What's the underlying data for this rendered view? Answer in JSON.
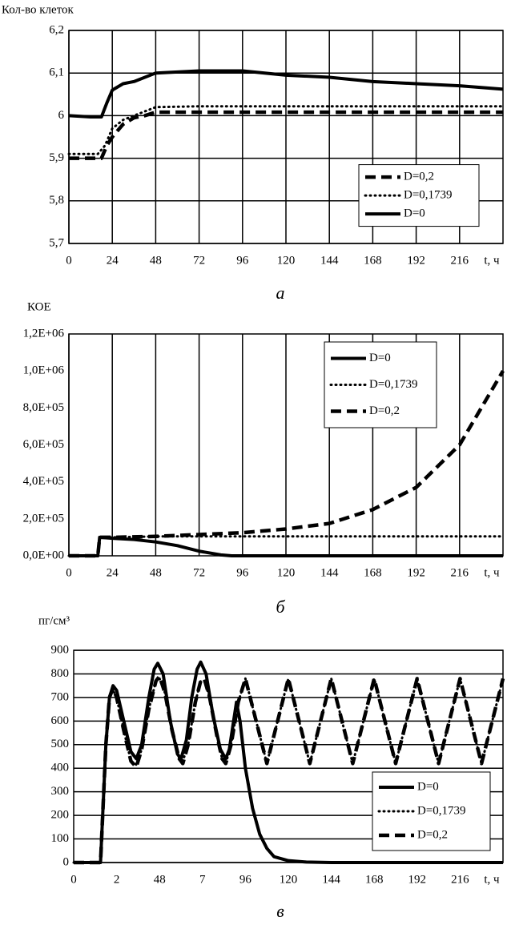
{
  "chart_data": [
    {
      "type": "line",
      "y_label": "Кол-во клеток",
      "caption": "а",
      "x_label": "t, ч",
      "xlim": [
        0,
        240
      ],
      "xticks": [
        0,
        24,
        48,
        72,
        96,
        120,
        144,
        168,
        192,
        216
      ],
      "ylim": [
        5.7,
        6.2
      ],
      "yticks": [
        {
          "value": 5.7,
          "label": "5,7"
        },
        {
          "value": 5.8,
          "label": "5,8"
        },
        {
          "value": 5.9,
          "label": "5,9"
        },
        6,
        {
          "value": 6.1,
          "label": "6,1"
        },
        {
          "value": 6.2,
          "label": "6,2"
        }
      ],
      "grid": "both",
      "legend": "right",
      "series": [
        {
          "name": "D=0,2",
          "color": "#000000",
          "dash": "dashed",
          "x": [
            0,
            18,
            21,
            24,
            30,
            36,
            42,
            48,
            240
          ],
          "values": [
            5.9,
            5.9,
            5.93,
            5.95,
            5.98,
            5.995,
            6.0,
            6.008,
            6.008
          ]
        },
        {
          "name": "D=0,1739",
          "color": "#000000",
          "dash": "dotted",
          "x": [
            0,
            16,
            20,
            24,
            30,
            36,
            48,
            72,
            120,
            240
          ],
          "values": [
            5.91,
            5.91,
            5.93,
            5.97,
            5.99,
            6.0,
            6.02,
            6.022,
            6.022,
            6.022
          ]
        },
        {
          "name": "D=0",
          "color": "#000000",
          "dash": "solid",
          "x": [
            0,
            12,
            18,
            21,
            24,
            30,
            36,
            48,
            72,
            96,
            120,
            144,
            168,
            192,
            216,
            240
          ],
          "values": [
            6.0,
            5.997,
            5.997,
            6.03,
            6.06,
            6.075,
            6.08,
            6.1,
            6.105,
            6.105,
            6.095,
            6.09,
            6.08,
            6.075,
            6.07,
            6.062
          ]
        }
      ]
    },
    {
      "type": "line",
      "y_label": "КОЕ",
      "caption": "б",
      "x_label": "t, ч",
      "xlim": [
        0,
        240
      ],
      "xticks": [
        0,
        24,
        48,
        72,
        96,
        120,
        144,
        168,
        192,
        216
      ],
      "ylim": [
        0,
        1200000
      ],
      "yticks": [
        {
          "value": 0,
          "label": "0,0E+00"
        },
        {
          "value": 200000,
          "label": "2,0E+05"
        },
        {
          "value": 400000,
          "label": "4,0E+05"
        },
        {
          "value": 600000,
          "label": "6,0E+05"
        },
        {
          "value": 800000,
          "label": "8,0E+05"
        },
        {
          "value": 1000000,
          "label": "1,0E+06"
        },
        {
          "value": 1200000,
          "label": "1,2E+06"
        }
      ],
      "grid": "x",
      "legend": "upper right",
      "series": [
        {
          "name": "D=0",
          "color": "#000000",
          "dash": "solid",
          "x": [
            0,
            16,
            17,
            24,
            36,
            48,
            60,
            72,
            84,
            90,
            240
          ],
          "values": [
            0,
            0,
            100000,
            95000,
            88000,
            75000,
            55000,
            25000,
            5000,
            0,
            0
          ]
        },
        {
          "name": "D=0,1739",
          "color": "#000000",
          "dash": "dotted",
          "x": [
            0,
            16,
            17,
            24,
            48,
            72,
            240
          ],
          "values": [
            0,
            0,
            100000,
            100000,
            105000,
            105000,
            105000
          ]
        },
        {
          "name": "D=0,2",
          "color": "#000000",
          "dash": "dashed",
          "x": [
            0,
            16,
            17,
            24,
            48,
            72,
            96,
            120,
            144,
            168,
            192,
            216,
            240
          ],
          "values": [
            0,
            0,
            100000,
            100000,
            105000,
            115000,
            125000,
            145000,
            175000,
            250000,
            370000,
            600000,
            1000000
          ]
        }
      ]
    },
    {
      "type": "line",
      "y_label": "пг/см³",
      "caption": "в",
      "x_label": "t, ч",
      "xlim": [
        0,
        240
      ],
      "xticks": [
        0,
        {
          "value": 24,
          "label": "2"
        },
        48,
        {
          "value": 72,
          "label": "7"
        },
        96,
        120,
        144,
        168,
        192,
        216
      ],
      "ylim": [
        0,
        900
      ],
      "yticks": [
        0,
        100,
        200,
        300,
        400,
        500,
        600,
        700,
        800,
        900
      ],
      "grid": "y",
      "legend": "lower right",
      "series": [
        {
          "name": "D=0",
          "color": "#000000",
          "dash": "solid",
          "x": [
            0,
            15,
            18,
            20,
            22,
            24,
            28,
            32,
            35,
            38,
            42,
            45,
            47,
            50,
            54,
            58,
            60,
            63,
            66,
            69,
            71,
            74,
            78,
            82,
            85,
            87,
            89,
            91,
            93,
            96,
            100,
            104,
            108,
            112,
            120,
            130,
            144,
            168,
            192,
            216,
            240
          ],
          "values": [
            0,
            0,
            500,
            700,
            750,
            730,
            600,
            470,
            440,
            500,
            700,
            820,
            845,
            800,
            600,
            460,
            440,
            520,
            700,
            820,
            850,
            800,
            620,
            480,
            440,
            480,
            580,
            680,
            600,
            400,
            230,
            120,
            60,
            25,
            8,
            2,
            0,
            0,
            0,
            0,
            0
          ]
        },
        {
          "name": "D=0,1739",
          "color": "#000000",
          "dash": "dotted",
          "x": [
            0,
            15,
            18,
            20,
            22,
            24,
            28,
            32,
            35,
            38,
            42,
            46,
            48,
            51,
            55,
            59,
            61,
            64,
            68,
            71,
            73,
            76,
            80,
            83,
            85,
            88,
            92,
            96,
            102,
            108,
            114,
            120,
            126,
            132,
            138,
            144,
            150,
            156,
            162,
            168,
            174,
            180,
            186,
            192,
            198,
            204,
            210,
            216,
            222,
            228,
            234,
            240
          ],
          "values": [
            0,
            0,
            500,
            700,
            730,
            700,
            560,
            430,
            415,
            480,
            650,
            770,
            780,
            720,
            560,
            440,
            430,
            500,
            680,
            770,
            770,
            700,
            540,
            440,
            420,
            500,
            680,
            780,
            600,
            420,
            600,
            780,
            600,
            420,
            600,
            780,
            600,
            420,
            600,
            780,
            600,
            420,
            600,
            780,
            600,
            420,
            600,
            780,
            600,
            420,
            600,
            780
          ]
        },
        {
          "name": "D=0,2",
          "color": "#000000",
          "dash": "dashed",
          "x": [
            0,
            15,
            18,
            20,
            22,
            24,
            28,
            32,
            35,
            38,
            42,
            46,
            48,
            51,
            55,
            59,
            61,
            64,
            68,
            71,
            73,
            76,
            80,
            83,
            85,
            88,
            92,
            96,
            102,
            108,
            114,
            120,
            126,
            132,
            138,
            144,
            150,
            156,
            162,
            168,
            174,
            180,
            186,
            192,
            198,
            204,
            210,
            216,
            222,
            228,
            234,
            240
          ],
          "values": [
            0,
            0,
            500,
            700,
            740,
            700,
            560,
            430,
            405,
            480,
            650,
            770,
            790,
            720,
            560,
            440,
            420,
            500,
            680,
            770,
            780,
            700,
            540,
            440,
            420,
            500,
            680,
            780,
            600,
            420,
            600,
            780,
            600,
            420,
            600,
            780,
            600,
            420,
            600,
            780,
            600,
            420,
            600,
            780,
            600,
            420,
            600,
            780,
            600,
            420,
            600,
            780
          ]
        }
      ]
    }
  ]
}
